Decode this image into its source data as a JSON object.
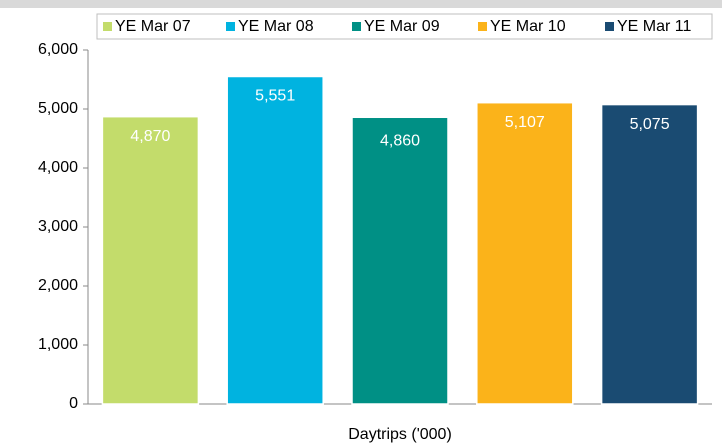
{
  "chart_data": {
    "type": "bar",
    "categories": [
      "Daytrips ('000)"
    ],
    "series": [
      {
        "name": "YE Mar 07",
        "color": "#c3dc6b",
        "values": [
          4870
        ],
        "value_labels": [
          "4,870"
        ]
      },
      {
        "name": "YE Mar 08",
        "color": "#00b3e0",
        "values": [
          5551
        ],
        "value_labels": [
          "5,551"
        ]
      },
      {
        "name": "YE Mar 09",
        "color": "#009085",
        "values": [
          4860
        ],
        "value_labels": [
          "4,860"
        ]
      },
      {
        "name": "YE Mar 10",
        "color": "#fbb31a",
        "values": [
          5107
        ],
        "value_labels": [
          "5,107"
        ]
      },
      {
        "name": "YE Mar 11",
        "color": "#1a4b72",
        "values": [
          5075
        ],
        "value_labels": [
          "5,075"
        ]
      }
    ],
    "ylim": [
      0,
      6000
    ],
    "yticks": [
      0,
      {
        "value": 1000,
        "label": "1,000"
      },
      {
        "value": 2000,
        "label": "2,000"
      },
      {
        "value": 3000,
        "label": "3,000"
      },
      {
        "value": 4000,
        "label": "4,000"
      },
      {
        "value": 5000,
        "label": "5,000"
      },
      {
        "value": 6000,
        "label": "6,000"
      }
    ],
    "grid": false,
    "legend": "top"
  }
}
